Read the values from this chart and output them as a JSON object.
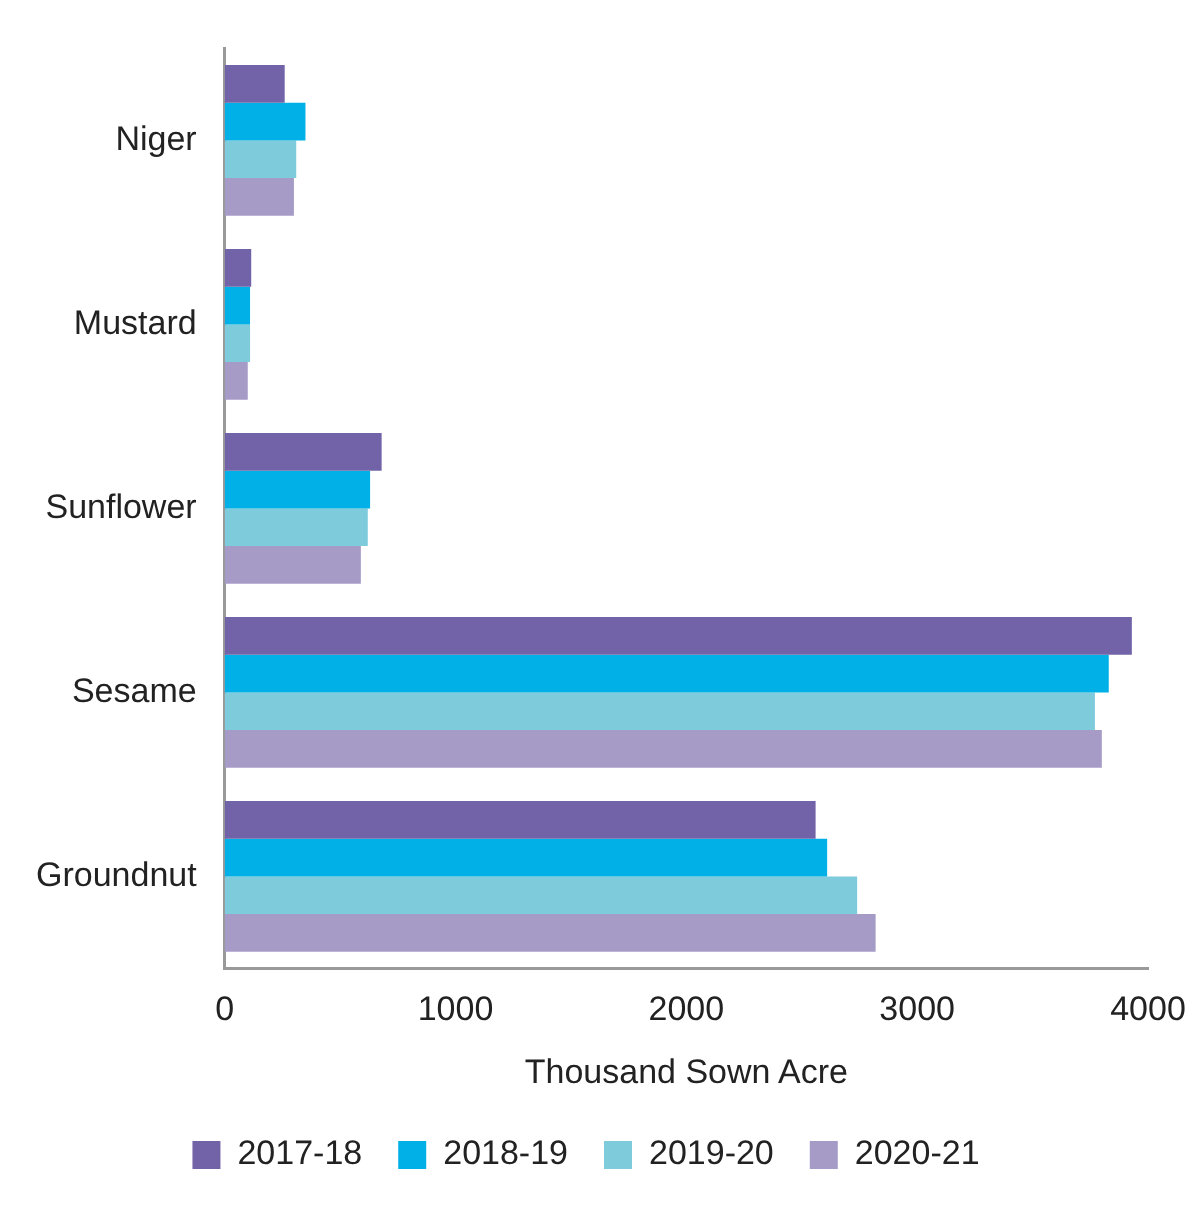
{
  "chart_data": {
    "type": "bar",
    "orientation": "horizontal",
    "xlabel": "Thousand Sown Acre",
    "categories": [
      "Niger",
      "Mustard",
      "Sunflower",
      "Sesame",
      "Groundnut"
    ],
    "series": [
      {
        "name": "2017-18",
        "color": "#7263a8",
        "values": [
          260,
          115,
          680,
          3930,
          2560
        ]
      },
      {
        "name": "2018-19",
        "color": "#00b0e6",
        "values": [
          350,
          110,
          630,
          3830,
          2610
        ]
      },
      {
        "name": "2019-20",
        "color": "#7ecbdc",
        "values": [
          310,
          110,
          620,
          3770,
          2740
        ]
      },
      {
        "name": "2020-21",
        "color": "#a59bc6",
        "values": [
          300,
          100,
          590,
          3800,
          2820
        ]
      }
    ],
    "xlim": [
      0,
      4000
    ],
    "xticks": [
      0,
      1000,
      2000,
      3000,
      4000
    ],
    "grid": false,
    "legend": "bottom"
  }
}
